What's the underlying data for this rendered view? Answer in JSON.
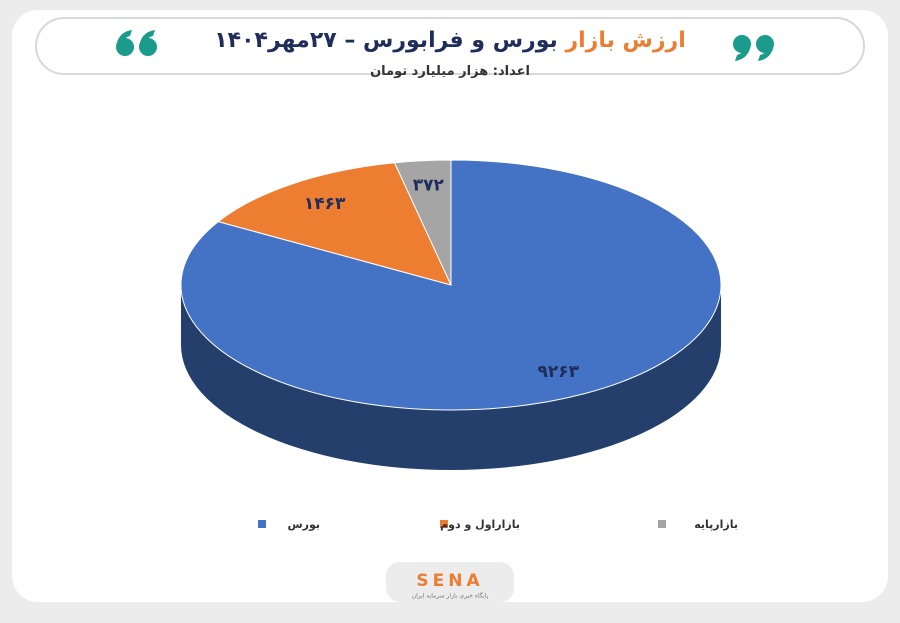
{
  "chart_data": {
    "type": "pie",
    "title_parts": [
      "ارزش بازار",
      "بورس و فرابورس – ۲۷مهر۱۴۰۴"
    ],
    "subtitle": "اعداد: هزار میلیارد تومان",
    "categories": [
      "بورس",
      "بازاراول و دوم",
      "بازارپایه"
    ],
    "values": [
      9263,
      1463,
      372
    ],
    "value_labels": [
      "۹۲۶۳",
      "۱۴۶۳",
      "۳۷۲"
    ],
    "colors": [
      "#4472c4",
      "#ed7d31",
      "#a5a5a5"
    ]
  },
  "brand": {
    "name": "SENA",
    "tagline": "پایگاه خبری بازار سرمایه ایران"
  }
}
